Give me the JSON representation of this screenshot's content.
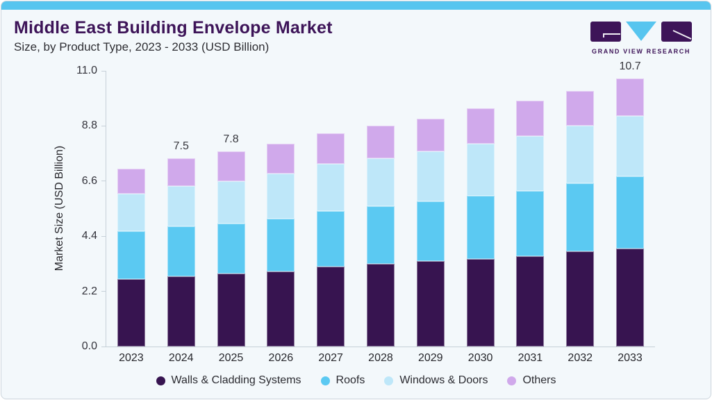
{
  "header": {
    "title": "Middle East Building Envelope Market",
    "subtitle": "Size, by Product Type, 2023 - 2033 (USD Billion)"
  },
  "logo": {
    "text": "GRAND VIEW RESEARCH",
    "icon": "gvr-logo-icon"
  },
  "colors": {
    "accent_bar": "#57c5ef",
    "card_background": "#f3f8fb",
    "brand_purple": "#3d1458",
    "logo_triangle_blue": "#57c5ef"
  },
  "chart_data": {
    "type": "bar",
    "stacked": true,
    "title": "Middle East Building Envelope Market Size, by Product Type, 2023 - 2033 (USD Billion)",
    "categories": [
      "2023",
      "2024",
      "2025",
      "2026",
      "2027",
      "2028",
      "2029",
      "2030",
      "2031",
      "2032",
      "2033"
    ],
    "series": [
      {
        "name": "Walls & Cladding Systems",
        "color": "#371450",
        "values": [
          2.7,
          2.8,
          2.9,
          3.0,
          3.2,
          3.3,
          3.4,
          3.5,
          3.6,
          3.8,
          3.9
        ]
      },
      {
        "name": "Roofs",
        "color": "#5bc9f2",
        "values": [
          1.9,
          2.0,
          2.0,
          2.1,
          2.2,
          2.3,
          2.4,
          2.5,
          2.6,
          2.7,
          2.9
        ]
      },
      {
        "name": "Windows & Doors",
        "color": "#bee7f9",
        "values": [
          1.5,
          1.6,
          1.7,
          1.8,
          1.9,
          1.9,
          2.0,
          2.1,
          2.2,
          2.3,
          2.4
        ]
      },
      {
        "name": "Others",
        "color": "#d0a9eb",
        "values": [
          1.0,
          1.1,
          1.2,
          1.2,
          1.2,
          1.3,
          1.3,
          1.4,
          1.4,
          1.4,
          1.5
        ]
      }
    ],
    "totals": [
      7.1,
      7.5,
      7.8,
      8.1,
      8.5,
      8.8,
      9.1,
      9.5,
      9.8,
      10.2,
      10.7
    ],
    "bar_total_labels": [
      "",
      "7.5",
      "7.8",
      "",
      "",
      "",
      "",
      "",
      "",
      "",
      "10.7"
    ],
    "ylabel": "Market Size (USD Billion)",
    "yticks": [
      "0.0",
      "2.2",
      "4.4",
      "6.6",
      "8.8",
      "11.0"
    ],
    "ylim": [
      0,
      11.0
    ],
    "grid": false,
    "legend_position": "bottom"
  }
}
